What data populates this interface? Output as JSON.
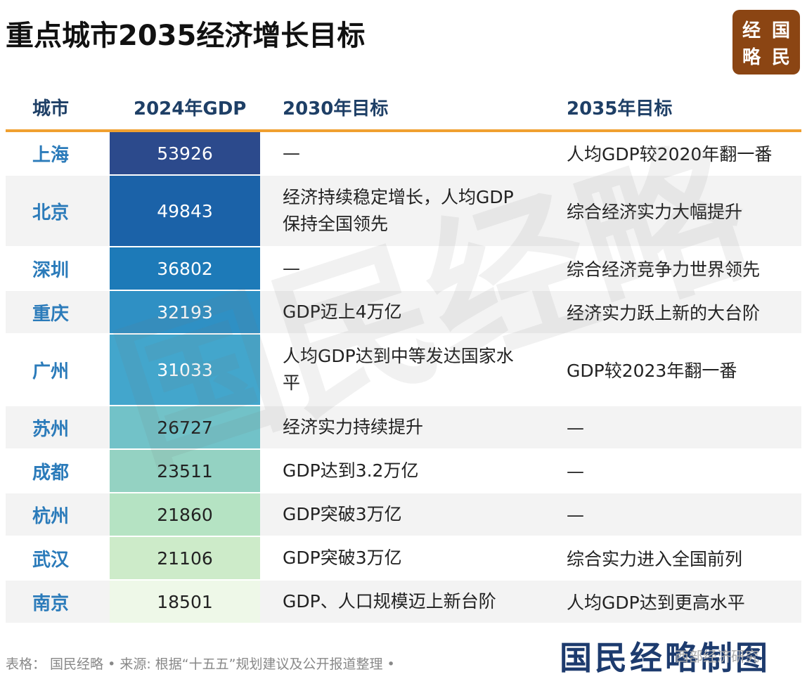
{
  "title": "重点城市2035经济增长目标",
  "logo": [
    "经",
    "国",
    "略",
    "民"
  ],
  "watermark": "国民经略",
  "footer": "表格： 国民经略 • 来源: 根据“十五五”规划建议及公开报道整理 •",
  "brand": "国民经略制图",
  "brand_overlay": "西部经济研究",
  "chart_data": {
    "type": "table",
    "title": "重点城市2035经济增长目标",
    "columns": [
      "城市",
      "2024年GDP",
      "2030年目标",
      "2035年目标"
    ],
    "rows": [
      {
        "city": "上海",
        "gdp": "53926",
        "goal2030": "—",
        "goal2035": "人均GDP较2020年翻一番",
        "color": "#2c4a8c",
        "text_color": "#ffffff"
      },
      {
        "city": "北京",
        "gdp": "49843",
        "goal2030": "经济持续稳定增长，人均GDP保持全国领先",
        "goal2035": "综合经济实力大幅提升",
        "color": "#1b62a8",
        "text_color": "#ffffff"
      },
      {
        "city": "深圳",
        "gdp": "36802",
        "goal2030": "—",
        "goal2035": "综合经济竞争力世界领先",
        "color": "#1d7ab8",
        "text_color": "#ffffff"
      },
      {
        "city": "重庆",
        "gdp": "32193",
        "goal2030": "GDP迈上4万亿",
        "goal2035": "经济实力跃上新的大台阶",
        "color": "#2f90c4",
        "text_color": "#ffffff"
      },
      {
        "city": "广州",
        "gdp": "31033",
        "goal2030": "人均GDP达到中等发达国家水平",
        "goal2035": "GDP较2023年翻一番",
        "color": "#43a6cc",
        "text_color": "#ffffff"
      },
      {
        "city": "苏州",
        "gdp": "26727",
        "goal2030": "经济实力持续提升",
        "goal2035": "—",
        "color": "#72c2c8",
        "text_color": "#222222"
      },
      {
        "city": "成都",
        "gdp": "23511",
        "goal2030": "GDP达到3.2万亿",
        "goal2035": "—",
        "color": "#94d2c2",
        "text_color": "#222222"
      },
      {
        "city": "杭州",
        "gdp": "21860",
        "goal2030": "GDP突破3万亿",
        "goal2035": "—",
        "color": "#b5e3c3",
        "text_color": "#222222"
      },
      {
        "city": "武汉",
        "gdp": "21106",
        "goal2030": "GDP突破3万亿",
        "goal2035": "综合实力进入全国前列",
        "color": "#cdebc9",
        "text_color": "#222222"
      },
      {
        "city": "南京",
        "gdp": "18501",
        "goal2030": "GDP、人口规模迈上新台阶",
        "goal2035": "人均GDP达到更高水平",
        "color": "#eef8e8",
        "text_color": "#222222"
      }
    ]
  }
}
